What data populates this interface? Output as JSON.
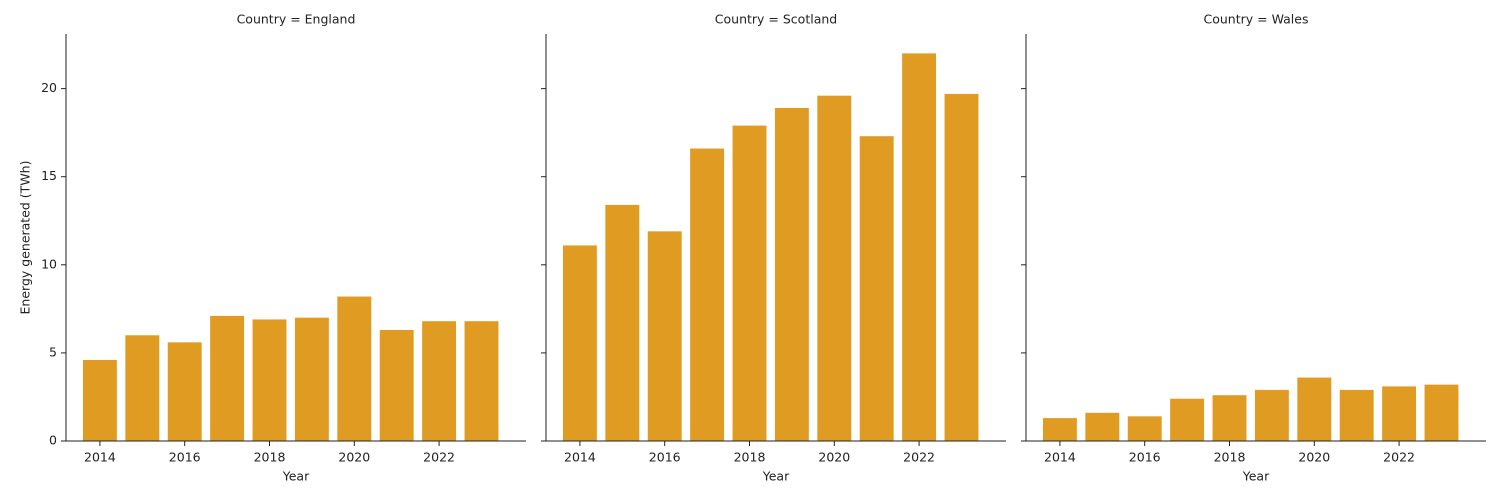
{
  "chart_data": [
    {
      "type": "bar",
      "title": "Country = England",
      "xlabel": "Year",
      "ylabel": "Energy generated (TWh)",
      "x": [
        2014,
        2015,
        2016,
        2017,
        2018,
        2019,
        2020,
        2021,
        2022,
        2023
      ],
      "values": [
        4.6,
        6.0,
        5.6,
        7.1,
        6.9,
        7.0,
        8.2,
        6.3,
        6.8,
        6.8
      ],
      "color": "#e09c22",
      "xlim": [
        2013.2,
        2024.05
      ],
      "ylim": [
        0,
        23.1
      ],
      "xticks": [
        2014,
        2016,
        2018,
        2020,
        2022
      ],
      "yticks": [
        0,
        5,
        10,
        15,
        20
      ]
    },
    {
      "type": "bar",
      "title": "Country = Scotland",
      "xlabel": "Year",
      "x": [
        2014,
        2015,
        2016,
        2017,
        2018,
        2019,
        2020,
        2021,
        2022,
        2023
      ],
      "values": [
        11.1,
        13.4,
        11.9,
        16.6,
        17.9,
        18.9,
        19.6,
        17.3,
        22.0,
        19.7
      ],
      "color": "#e09c22",
      "xlim": [
        2013.2,
        2024.05
      ],
      "ylim": [
        0,
        23.1
      ],
      "xticks": [
        2014,
        2016,
        2018,
        2020,
        2022
      ],
      "yticks": [
        0,
        5,
        10,
        15,
        20
      ]
    },
    {
      "type": "bar",
      "title": "Country = Wales",
      "xlabel": "Year",
      "x": [
        2014,
        2015,
        2016,
        2017,
        2018,
        2019,
        2020,
        2021,
        2022,
        2023
      ],
      "values": [
        1.3,
        1.6,
        1.4,
        2.4,
        2.6,
        2.9,
        3.6,
        2.9,
        3.1,
        3.2
      ],
      "color": "#e09c22",
      "xlim": [
        2013.2,
        2024.05
      ],
      "ylim": [
        0,
        23.1
      ],
      "xticks": [
        2014,
        2016,
        2018,
        2020,
        2022
      ],
      "yticks": [
        0,
        5,
        10,
        15,
        20
      ]
    }
  ]
}
